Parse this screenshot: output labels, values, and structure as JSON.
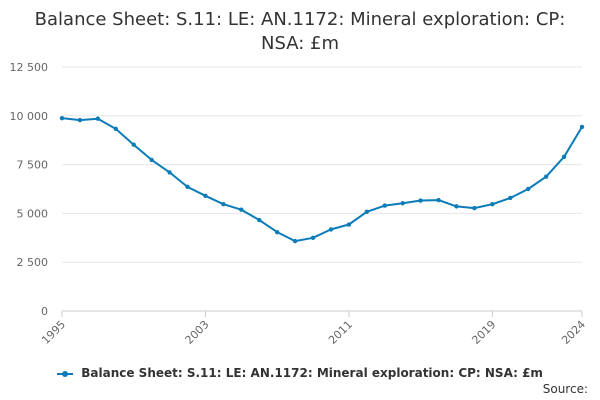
{
  "chart_data": {
    "type": "line",
    "title_lines": [
      "Balance Sheet: S.11: LE: AN.1172: Mineral exploration: CP:",
      "NSA: £m"
    ],
    "xlabel": "",
    "ylabel": "",
    "x": [
      1995,
      1996,
      1997,
      1998,
      1999,
      2000,
      2001,
      2002,
      2003,
      2004,
      2005,
      2006,
      2007,
      2008,
      2009,
      2010,
      2011,
      2012,
      2013,
      2014,
      2015,
      2016,
      2017,
      2018,
      2019,
      2020,
      2021,
      2022,
      2023,
      2024
    ],
    "xticks": [
      "1995",
      "2003",
      "2011",
      "2019",
      "2024"
    ],
    "xtick_values": [
      1995,
      2003,
      2011,
      2019,
      2024
    ],
    "xlim": [
      1995,
      2024
    ],
    "ylim": [
      0,
      12500
    ],
    "yticks": [
      "0",
      "2 500",
      "5 000",
      "7 500",
      "10 000",
      "12 500"
    ],
    "ytick_values": [
      0,
      2500,
      5000,
      7500,
      10000,
      12500
    ],
    "grid": true,
    "legend_position": "bottom",
    "series": [
      {
        "name": "Balance Sheet: S.11: LE: AN.1172: Mineral exploration: CP: NSA: £m",
        "color": "#0b7cb8",
        "values": [
          9880,
          9780,
          9850,
          9330,
          8520,
          7740,
          7100,
          6360,
          5900,
          5470,
          5190,
          4660,
          4040,
          3580,
          3750,
          4180,
          4430,
          5080,
          5400,
          5520,
          5660,
          5680,
          5360,
          5270,
          5470,
          5790,
          6250,
          6880,
          7900,
          9430
        ]
      }
    ]
  },
  "source_label": "Source:"
}
